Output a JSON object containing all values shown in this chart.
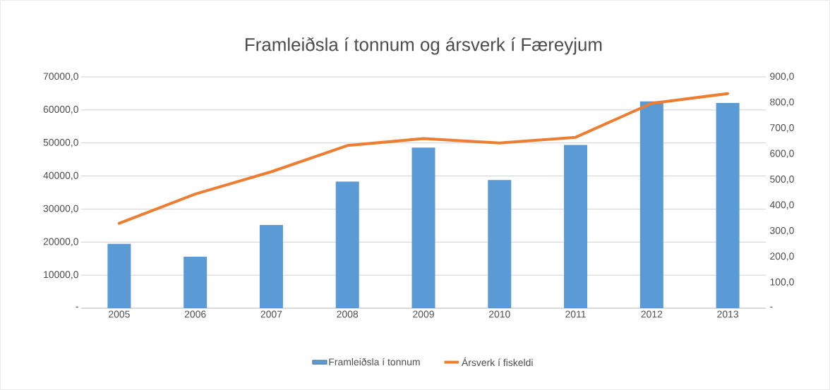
{
  "chart_data": {
    "type": "bar",
    "title": "Framleiðsla í tonnum og ársverk í Færeyjum",
    "categories": [
      "2005",
      "2006",
      "2007",
      "2008",
      "2009",
      "2010",
      "2011",
      "2012",
      "2013"
    ],
    "series": [
      {
        "name": "Framleiðsla í tonnum",
        "color": "#5b9bd5",
        "values": [
          19500,
          15600,
          25200,
          38300,
          48600,
          38800,
          49400,
          62600,
          62100
        ]
      },
      {
        "name": "Ársverk í fiskeldi",
        "type": "line",
        "axis": "y2",
        "color": "#ed7d31",
        "values": [
          330,
          444,
          531,
          633,
          660,
          643,
          665,
          797,
          835
        ]
      }
    ],
    "ylim": [
      0,
      70000
    ],
    "yticks": [
      {
        "value": 0,
        "label": "-"
      },
      {
        "value": 10000,
        "label": "10000,0"
      },
      {
        "value": 20000,
        "label": "20000,0"
      },
      {
        "value": 30000,
        "label": "30000,0"
      },
      {
        "value": 40000,
        "label": "40000,0"
      },
      {
        "value": 50000,
        "label": "50000,0"
      },
      {
        "value": 60000,
        "label": "60000,0"
      },
      {
        "value": 70000,
        "label": "70000,0"
      }
    ],
    "y2lim": [
      0,
      900
    ],
    "y2ticks": [
      {
        "value": 0,
        "label": "-"
      },
      {
        "value": 100,
        "label": "100,0"
      },
      {
        "value": 200,
        "label": "200,0"
      },
      {
        "value": 300,
        "label": "300,0"
      },
      {
        "value": 400,
        "label": "400,0"
      },
      {
        "value": 500,
        "label": "500,0"
      },
      {
        "value": 600,
        "label": "600,0"
      },
      {
        "value": 700,
        "label": "700,0"
      },
      {
        "value": 800,
        "label": "800,0"
      },
      {
        "value": 900,
        "label": "900,0"
      }
    ],
    "grid": "y",
    "legend": "bottom"
  }
}
